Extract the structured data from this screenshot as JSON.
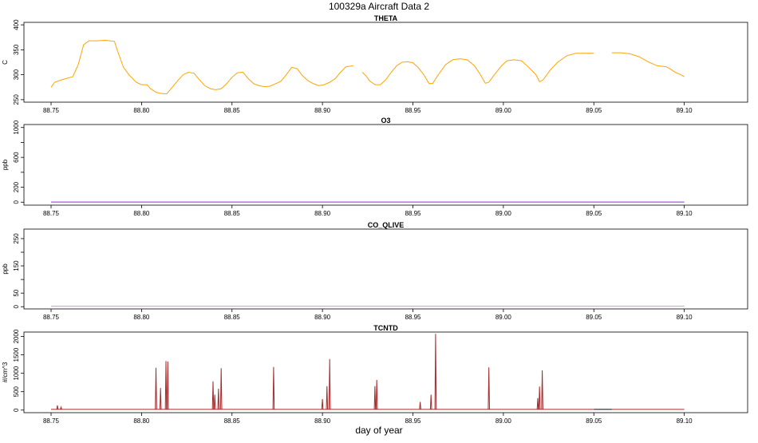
{
  "title": "100329a   Aircraft Data 2",
  "xlabel": "day of year",
  "chart_data": [
    {
      "type": "line",
      "title": "THETA",
      "ylabel": "C",
      "color": "#FFA500",
      "xlim": [
        88.735,
        89.135
      ],
      "ylim": [
        245,
        405
      ],
      "yticks": [
        250,
        300,
        350,
        400
      ],
      "xticks": [
        "88.75",
        "88.80",
        "88.85",
        "88.90",
        "88.95",
        "89.00",
        "89.05",
        "89.10"
      ],
      "segments": [
        {
          "x": [
            88.75,
            88.752,
            88.756,
            88.762,
            88.765,
            88.768,
            88.771,
            88.775,
            88.78,
            88.785,
            88.787,
            88.79,
            88.793,
            88.797,
            88.8,
            88.803,
            88.805,
            88.808,
            88.81,
            88.812,
            88.814,
            88.817,
            88.82,
            88.823,
            88.826,
            88.829,
            88.832,
            88.835,
            88.838,
            88.841,
            88.844,
            88.847,
            88.85,
            88.853,
            88.856,
            88.859,
            88.862,
            88.865,
            88.868,
            88.871,
            88.874,
            88.877,
            88.88,
            88.883,
            88.886,
            88.889,
            88.892,
            88.895,
            88.898,
            88.901,
            88.904,
            88.907,
            88.91,
            88.913,
            88.917
          ],
          "y": [
            275,
            285,
            290,
            296,
            320,
            360,
            368,
            368,
            369,
            367,
            345,
            315,
            300,
            285,
            280,
            280,
            272,
            265,
            263,
            262,
            262,
            275,
            288,
            300,
            305,
            303,
            290,
            278,
            272,
            270,
            272,
            282,
            295,
            304,
            305,
            292,
            282,
            278,
            276,
            277,
            282,
            287,
            300,
            315,
            312,
            298,
            288,
            282,
            278,
            280,
            285,
            292,
            305,
            316,
            318
          ]
        },
        {
          "x": [
            88.922,
            88.924,
            88.926,
            88.929,
            88.932,
            88.935,
            88.938,
            88.941,
            88.944,
            88.947,
            88.95,
            88.953,
            88.956,
            88.959,
            88.961,
            88.964,
            88.968,
            88.972,
            88.976,
            88.98,
            88.984,
            88.987,
            88.99,
            88.992,
            88.995,
            88.999,
            89.002,
            89.006,
            89.01,
            89.014,
            89.018,
            89.02,
            89.022,
            89.026,
            89.03,
            89.035,
            89.04,
            89.045,
            89.05
          ],
          "y": [
            305,
            298,
            288,
            280,
            280,
            290,
            305,
            318,
            325,
            326,
            324,
            314,
            300,
            282,
            283,
            300,
            320,
            330,
            332,
            330,
            318,
            302,
            283,
            285,
            300,
            318,
            328,
            330,
            328,
            315,
            300,
            286,
            290,
            310,
            325,
            338,
            343,
            343,
            343
          ]
        },
        {
          "x": [
            89.06,
            89.065,
            89.07,
            89.075,
            89.08,
            89.085,
            89.09,
            89.092,
            89.095,
            89.098,
            89.1
          ],
          "y": [
            344,
            344,
            342,
            336,
            326,
            318,
            316,
            312,
            305,
            300,
            296
          ]
        }
      ]
    },
    {
      "type": "line",
      "title": "O3",
      "ylabel": "ppb",
      "color": "#A020F0",
      "xlim": [
        88.735,
        89.135
      ],
      "ylim": [
        -40,
        1040
      ],
      "yticks": [
        0,
        200,
        600,
        1000
      ],
      "yminor": [
        400,
        800
      ],
      "xticks": [
        "88.75",
        "88.80",
        "88.85",
        "88.90",
        "88.95",
        "89.00",
        "89.05",
        "89.10"
      ],
      "x": [
        88.75,
        89.1
      ],
      "y": [
        2,
        2
      ]
    },
    {
      "type": "line",
      "title": "CO_QLIVE",
      "ylabel": "ppb",
      "color": "#EE82EE",
      "xlim": [
        88.735,
        89.135
      ],
      "ylim": [
        -8,
        285
      ],
      "yticks": [
        0,
        50,
        150,
        250
      ],
      "yminor": [
        100,
        200
      ],
      "xticks": [
        "88.75",
        "88.80",
        "88.85",
        "88.90",
        "88.95",
        "89.00",
        "89.05",
        "89.10"
      ],
      "x": [
        88.75,
        89.1
      ],
      "y": [
        2,
        2
      ]
    },
    {
      "type": "line",
      "title": "TCNTD",
      "ylabel": "#/cm^3",
      "color": "#A52A2A",
      "xlim": [
        88.735,
        89.135
      ],
      "ylim": [
        -70,
        2120
      ],
      "yticks": [
        0,
        500,
        1000,
        1500,
        2000
      ],
      "xticks": [
        "88.75",
        "88.80",
        "88.85",
        "88.90",
        "88.95",
        "89.00",
        "89.05",
        "89.10"
      ],
      "baseline": 20,
      "gap": [
        89.05,
        89.06
      ],
      "spikes": [
        {
          "x": 88.7535,
          "y": 130
        },
        {
          "x": 88.7555,
          "y": 80
        },
        {
          "x": 88.808,
          "y": 1150
        },
        {
          "x": 88.8105,
          "y": 600
        },
        {
          "x": 88.8135,
          "y": 1330
        },
        {
          "x": 88.8145,
          "y": 1320
        },
        {
          "x": 88.8395,
          "y": 780
        },
        {
          "x": 88.8405,
          "y": 420
        },
        {
          "x": 88.8425,
          "y": 580
        },
        {
          "x": 88.844,
          "y": 1140
        },
        {
          "x": 88.873,
          "y": 1170
        },
        {
          "x": 88.9,
          "y": 300
        },
        {
          "x": 88.9025,
          "y": 650
        },
        {
          "x": 88.904,
          "y": 1390
        },
        {
          "x": 88.929,
          "y": 650
        },
        {
          "x": 88.93,
          "y": 820
        },
        {
          "x": 88.954,
          "y": 220
        },
        {
          "x": 88.96,
          "y": 420
        },
        {
          "x": 88.9625,
          "y": 2070
        },
        {
          "x": 88.992,
          "y": 1160
        },
        {
          "x": 89.019,
          "y": 330
        },
        {
          "x": 89.02,
          "y": 640
        },
        {
          "x": 89.0215,
          "y": 1080
        }
      ]
    }
  ]
}
